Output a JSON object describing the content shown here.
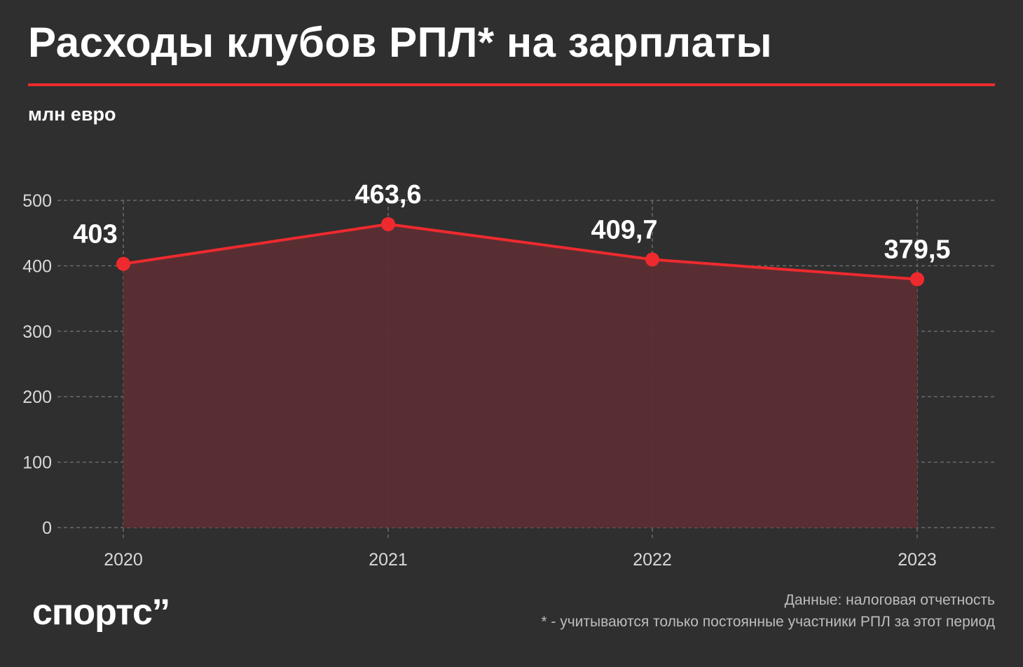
{
  "header": {
    "title": "Расходы клубов РПЛ* на зарплаты",
    "unit": "млн евро"
  },
  "footer": {
    "logo_text": "спортс’’",
    "source": "Данные: налоговая отчетность",
    "note": "* - учитываются только постоянные участники РПЛ за этот период"
  },
  "colors": {
    "background": "#2f2f2f",
    "accent": "#ee2a2e",
    "area_fill": "#5c2e33",
    "grid": "#6a6a6a",
    "axis_text": "#d9d9d9"
  },
  "chart_data": {
    "type": "area",
    "categories": [
      "2020",
      "2021",
      "2022",
      "2023"
    ],
    "values": [
      403,
      463.6,
      409.7,
      379.5
    ],
    "data_labels": [
      "403",
      "463,6",
      "409,7",
      "379,5"
    ],
    "yticks": [
      "500",
      "400",
      "300",
      "200",
      "100",
      "0"
    ],
    "ylim": [
      0,
      500
    ],
    "xlabel": "",
    "ylabel": "млн евро",
    "grid": true
  }
}
